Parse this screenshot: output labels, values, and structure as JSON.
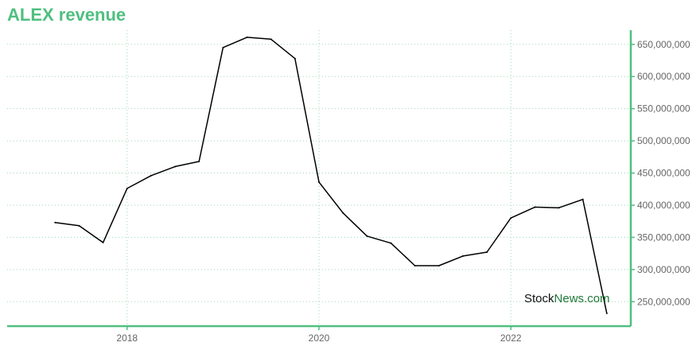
{
  "title": "ALEX revenue",
  "watermark": {
    "part1": "Stock",
    "part2": "News",
    "part3": ".com"
  },
  "colors": {
    "accent": "#4fbf7f",
    "line": "#000000",
    "grid": "#9fd8b4",
    "tick_text": "#666666"
  },
  "chart_data": {
    "type": "line",
    "title": "ALEX revenue",
    "xlabel": "",
    "ylabel": "",
    "x_ticks": [
      "2018",
      "2020",
      "2022"
    ],
    "y_ticks": [
      "250,000,000",
      "300,000,000",
      "350,000,000",
      "400,000,000",
      "450,000,000",
      "500,000,000",
      "550,000,000",
      "600,000,000",
      "650,000,000"
    ],
    "xlim": [
      2016.75,
      2023.25
    ],
    "ylim": [
      212000000,
      672000000
    ],
    "grid": true,
    "y_axis_position": "right",
    "series": [
      {
        "x": [
          2017.25,
          2017.5,
          2017.75,
          2018.0,
          2018.25,
          2018.5,
          2018.75,
          2019.0,
          2019.25,
          2019.5,
          2019.75,
          2020.0,
          2020.25,
          2020.5,
          2020.75,
          2021.0,
          2021.25,
          2021.5,
          2021.75,
          2022.0,
          2022.25,
          2022.5,
          2022.75,
          2023.0
        ],
        "values": [
          373000000,
          368000000,
          342000000,
          426000000,
          446000000,
          460000000,
          468000000,
          645000000,
          661000000,
          658000000,
          628000000,
          436000000,
          388000000,
          352000000,
          341000000,
          306000000,
          306000000,
          321000000,
          327000000,
          380000000,
          397000000,
          396000000,
          409000000,
          232000000
        ]
      }
    ]
  }
}
